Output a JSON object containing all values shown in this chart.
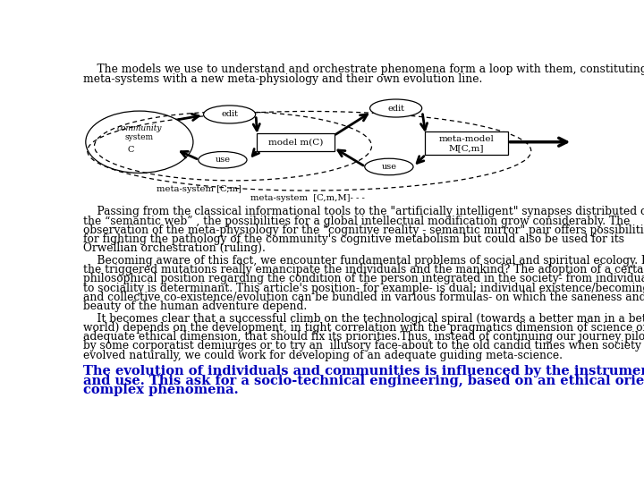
{
  "bg_color": "#ffffff",
  "title_line1": "    The models we use to understand and orchestrate phenomena form a loop with them, constituting new",
  "title_line2": "meta-systems with a new meta-physiology and their own evolution line.",
  "para1_lines": [
    "    Passing from the classical informational tools to the \"artificially intelligent\" synapses distributed on",
    "the “semantic web” , the possibilities for a global intellectual modification grow considerably. The",
    "observation of the meta-physiology for the \"cognitive reality - semantic mirror\" pair offers possibilities",
    "for fighting the pathology of the community's cognitive metabolism but could also be used for its",
    "Orwellian orchestration (ruling)."
  ],
  "para2_lines": [
    "    Becoming aware of this fact, we encounter fundamental problems of social and spiritual ecology. Do",
    "the triggered mutations really emancipate the individuals and the mankind? The adoption of a certain",
    "philosophical position regarding the condition of the person integrated in the society- from individualism",
    "to sociality is determinant. This article's position- for example- is dual: individual existence/becoming",
    "and collective co-existence/evolution can be bundled in various formulas- on which the saneness and",
    "beauty of the human adventure depend."
  ],
  "para3_lines": [
    "    It becomes clear that a successful climb on the technological spiral (towards a better man in a better",
    "world) depends on the development, in tight correlation with the pragmatics dimension of science of an",
    "adequate ethical dimension, that should fix its priorities.Thus, instead of continuing our journey piloted",
    "by some corporatist demiurges or to try an  illusory face-about to the old candid times when society",
    "evolved naturally, we could work for developing of an adequate guiding meta-science."
  ],
  "blue_lines": [
    "The evolution of individuals and communities is influenced by the instrument space they invent",
    "and use. This ask for a socio-technical engineering, based on an ethical oriented science of",
    "complex phenomena."
  ],
  "blue_color": "#0000bb",
  "text_fontsize": 8.8,
  "blue_fontsize": 10.5
}
